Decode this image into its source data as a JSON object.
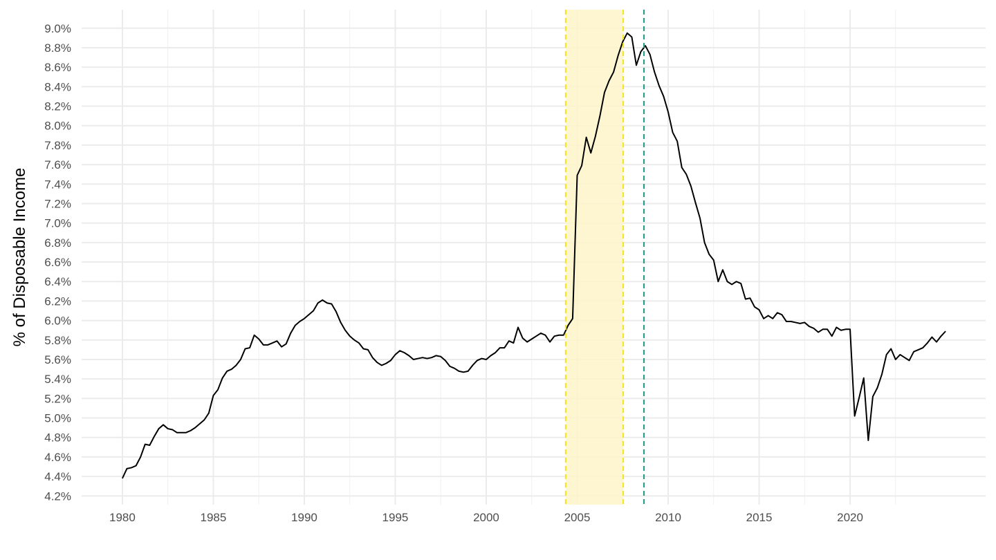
{
  "chart_data": {
    "type": "line",
    "y_label": "% of Disposable Income",
    "x": [
      1980,
      1980.25,
      1980.5,
      1980.75,
      1981,
      1981.25,
      1981.5,
      1981.75,
      1982,
      1982.25,
      1982.5,
      1982.75,
      1983,
      1983.25,
      1983.5,
      1983.75,
      1984,
      1984.25,
      1984.5,
      1984.75,
      1985,
      1985.25,
      1985.5,
      1985.75,
      1986,
      1986.25,
      1986.5,
      1986.75,
      1987,
      1987.25,
      1987.5,
      1987.75,
      1988,
      1988.25,
      1988.5,
      1988.75,
      1989,
      1989.25,
      1989.5,
      1989.75,
      1990,
      1990.25,
      1990.5,
      1990.75,
      1991,
      1991.25,
      1991.5,
      1991.75,
      1992,
      1992.25,
      1992.5,
      1992.75,
      1993,
      1993.25,
      1993.5,
      1993.75,
      1994,
      1994.25,
      1994.5,
      1994.75,
      1995,
      1995.25,
      1995.5,
      1995.75,
      1996,
      1996.25,
      1996.5,
      1996.75,
      1997,
      1997.25,
      1997.5,
      1997.75,
      1998,
      1998.25,
      1998.5,
      1998.75,
      1999,
      1999.25,
      1999.5,
      1999.75,
      2000,
      2000.25,
      2000.5,
      2000.75,
      2001,
      2001.25,
      2001.5,
      2001.75,
      2002,
      2002.25,
      2002.5,
      2002.75,
      2003,
      2003.25,
      2003.5,
      2003.75,
      2004,
      2004.25,
      2004.5,
      2004.75,
      2005,
      2005.25,
      2005.5,
      2005.75,
      2006,
      2006.25,
      2006.5,
      2006.75,
      2007,
      2007.25,
      2007.5,
      2007.75,
      2008,
      2008.25,
      2008.5,
      2008.75,
      2009,
      2009.25,
      2009.5,
      2009.75,
      2010,
      2010.25,
      2010.5,
      2010.75,
      2011,
      2011.25,
      2011.5,
      2011.75,
      2012,
      2012.25,
      2012.5,
      2012.75,
      2013,
      2013.25,
      2013.5,
      2013.75,
      2014,
      2014.25,
      2014.5,
      2014.75,
      2015,
      2015.25,
      2015.5,
      2015.75,
      2016,
      2016.25,
      2016.5,
      2016.75,
      2017,
      2017.25,
      2017.5,
      2017.75,
      2018,
      2018.25,
      2018.5,
      2018.75,
      2019,
      2019.25,
      2019.5,
      2019.75,
      2020,
      2020.25,
      2020.5,
      2020.75,
      2021,
      2021.25,
      2021.5,
      2021.75,
      2022,
      2022.25,
      2022.5,
      2022.75,
      2023,
      2023.25,
      2023.5,
      2023.75,
      2024,
      2024.25,
      2024.5,
      2024.75,
      2025,
      2025.25
    ],
    "values": [
      4.38,
      4.48,
      4.49,
      4.51,
      4.6,
      4.73,
      4.72,
      4.81,
      4.89,
      4.93,
      4.89,
      4.88,
      4.85,
      4.85,
      4.85,
      4.87,
      4.9,
      4.94,
      4.98,
      5.05,
      5.23,
      5.29,
      5.41,
      5.48,
      5.5,
      5.54,
      5.6,
      5.71,
      5.72,
      5.85,
      5.81,
      5.75,
      5.75,
      5.77,
      5.79,
      5.73,
      5.76,
      5.87,
      5.95,
      5.99,
      6.02,
      6.06,
      6.1,
      6.18,
      6.21,
      6.18,
      6.17,
      6.09,
      5.98,
      5.9,
      5.84,
      5.8,
      5.77,
      5.71,
      5.7,
      5.62,
      5.57,
      5.54,
      5.56,
      5.59,
      5.65,
      5.69,
      5.67,
      5.64,
      5.6,
      5.61,
      5.62,
      5.61,
      5.62,
      5.64,
      5.63,
      5.59,
      5.53,
      5.51,
      5.48,
      5.47,
      5.48,
      5.54,
      5.59,
      5.61,
      5.6,
      5.64,
      5.67,
      5.72,
      5.72,
      5.79,
      5.77,
      5.93,
      5.82,
      5.78,
      5.81,
      5.84,
      5.87,
      5.85,
      5.78,
      5.84,
      5.85,
      5.85,
      5.95,
      6.02,
      7.49,
      7.59,
      7.88,
      7.72,
      7.89,
      8.1,
      8.34,
      8.46,
      8.55,
      8.72,
      8.86,
      8.95,
      8.91,
      8.62,
      8.76,
      8.82,
      8.73,
      8.55,
      8.41,
      8.3,
      8.14,
      7.93,
      7.84,
      7.57,
      7.5,
      7.38,
      7.21,
      7.05,
      6.8,
      6.68,
      6.62,
      6.4,
      6.52,
      6.4,
      6.37,
      6.4,
      6.38,
      6.22,
      6.23,
      6.14,
      6.11,
      6.02,
      6.05,
      6.02,
      6.08,
      6.06,
      5.99,
      5.99,
      5.98,
      5.97,
      5.98,
      5.94,
      5.92,
      5.88,
      5.91,
      5.91,
      5.84,
      5.93,
      5.9,
      5.91,
      5.91,
      5.02,
      5.21,
      5.41,
      4.77,
      5.22,
      5.31,
      5.45,
      5.65,
      5.71,
      5.6,
      5.65,
      5.62,
      5.59,
      5.68,
      5.7,
      5.72,
      5.77,
      5.83,
      5.78,
      5.84,
      5.89
    ],
    "color": "#000000",
    "xlim": [
      1977.76,
      2027.45
    ],
    "xticks": [
      1980,
      1985,
      1990,
      1995,
      2000,
      2005,
      2010,
      2015,
      2020
    ],
    "xminorticks": [
      1982.5,
      1987.5,
      1992.5,
      1997.5,
      2002.5,
      2007.5,
      2012.5,
      2017.5,
      2022.5
    ],
    "ylim": [
      4.11,
      9.19
    ],
    "yticks": [
      {
        "value": 4.2,
        "label": "4.2%"
      },
      {
        "value": 4.4,
        "label": "4.4%"
      },
      {
        "value": 4.6,
        "label": "4.6%"
      },
      {
        "value": 4.8,
        "label": "4.8%"
      },
      {
        "value": 5.0,
        "label": "5.0%"
      },
      {
        "value": 5.2,
        "label": "5.2%"
      },
      {
        "value": 5.4,
        "label": "5.4%"
      },
      {
        "value": 5.6,
        "label": "5.6%"
      },
      {
        "value": 5.8,
        "label": "5.8%"
      },
      {
        "value": 6.0,
        "label": "6.0%"
      },
      {
        "value": 6.2,
        "label": "6.2%"
      },
      {
        "value": 6.4,
        "label": "6.4%"
      },
      {
        "value": 6.6,
        "label": "6.6%"
      },
      {
        "value": 6.8,
        "label": "6.8%"
      },
      {
        "value": 7.0,
        "label": "7.0%"
      },
      {
        "value": 7.2,
        "label": "7.2%"
      },
      {
        "value": 7.4,
        "label": "7.4%"
      },
      {
        "value": 7.6,
        "label": "7.6%"
      },
      {
        "value": 7.8,
        "label": "7.8%"
      },
      {
        "value": 8.0,
        "label": "8.0%"
      },
      {
        "value": 8.2,
        "label": "8.2%"
      },
      {
        "value": 8.4,
        "label": "8.4%"
      },
      {
        "value": 8.6,
        "label": "8.6%"
      },
      {
        "value": 8.8,
        "label": "8.8%"
      },
      {
        "value": 9.0,
        "label": "9.0%"
      }
    ],
    "grid": true,
    "shaded_region": {
      "x": [
        2004.37,
        2007.53
      ],
      "color": "#fdf5c9",
      "edge_color": "#f5e52a"
    },
    "vlines": [
      {
        "x": 2008.67,
        "color": "#2a9a8a"
      }
    ]
  }
}
